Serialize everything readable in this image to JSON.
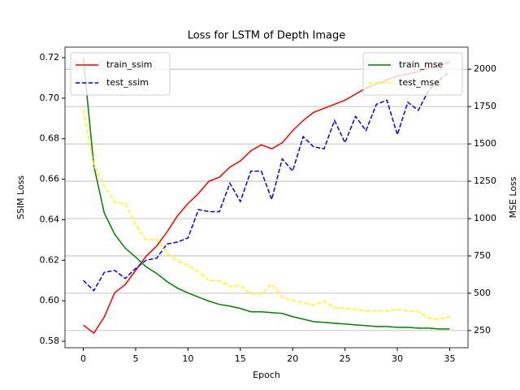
{
  "chart_data": {
    "type": "line",
    "title": "Loss for LSTM of Depth Image",
    "xlabel": "Epoch",
    "ylabel": "SSIM Loss",
    "y2label": "MSE Loss",
    "x": [
      0,
      1,
      2,
      3,
      4,
      5,
      6,
      7,
      8,
      9,
      10,
      11,
      12,
      13,
      14,
      15,
      16,
      17,
      18,
      19,
      20,
      21,
      22,
      23,
      24,
      25,
      26,
      27,
      28,
      29,
      30,
      31,
      32,
      33,
      34,
      35
    ],
    "xlim": [
      -1.75,
      36.75
    ],
    "xticks": [
      0,
      5,
      10,
      15,
      20,
      25,
      30,
      35
    ],
    "ylim": [
      0.5768,
      0.7252
    ],
    "yticks": [
      0.58,
      {
        "value": 0.6,
        "label": "0.60"
      },
      0.62,
      0.64,
      0.66,
      0.68,
      {
        "value": 0.7,
        "label": "0.70"
      },
      0.72
    ],
    "y2lim": [
      135,
      2148
    ],
    "y2ticks": [
      250,
      500,
      750,
      1000,
      1250,
      1500,
      1750,
      2000
    ],
    "grid": "y2",
    "legend_loc": "upper left",
    "legend2_loc": "upper right",
    "series": [
      {
        "name": "train_ssim",
        "color": "#ff0000",
        "linestyle": "solid",
        "axis": "y",
        "values": [
          0.588,
          0.584,
          0.592,
          0.604,
          0.608,
          0.615,
          0.622,
          0.627,
          0.634,
          0.642,
          0.648,
          0.653,
          0.659,
          0.661,
          0.666,
          0.669,
          0.674,
          0.677,
          0.675,
          0.678,
          0.684,
          0.689,
          0.693,
          0.695,
          0.697,
          0.699,
          0.702,
          0.705,
          0.707,
          0.709,
          0.711,
          0.712,
          0.713,
          0.715,
          0.716,
          0.718
        ]
      },
      {
        "name": "test_ssim",
        "color": "#0000ff",
        "linestyle": "dashed",
        "axis": "y",
        "values": [
          0.61,
          0.605,
          0.614,
          0.615,
          0.611,
          0.616,
          0.62,
          0.621,
          0.628,
          0.629,
          0.631,
          0.645,
          0.644,
          0.644,
          0.658,
          0.649,
          0.664,
          0.664,
          0.65,
          0.67,
          0.664,
          0.681,
          0.676,
          0.675,
          0.689,
          0.678,
          0.691,
          0.684,
          0.697,
          0.699,
          0.682,
          0.698,
          0.694,
          0.704,
          0.709,
          0.713
        ]
      },
      {
        "name": "train_mse",
        "color": "#008000",
        "linestyle": "solid",
        "axis": "y2",
        "values": [
          2077,
          1355,
          1037,
          895,
          802,
          742,
          677,
          633,
          578,
          534,
          502,
          474,
          447,
          425,
          414,
          398,
          376,
          376,
          370,
          365,
          343,
          327,
          310,
          305,
          299,
          294,
          288,
          283,
          277,
          277,
          272,
          272,
          266,
          266,
          261,
          261
        ]
      },
      {
        "name": "test_mse",
        "color": "#ffff00",
        "linestyle": "dashed",
        "axis": "y2",
        "values": [
          1727,
          1355,
          1218,
          1109,
          1098,
          955,
          857,
          862,
          770,
          715,
          687,
          644,
          584,
          584,
          545,
          551,
          496,
          496,
          562,
          474,
          452,
          436,
          420,
          447,
          403,
          398,
          392,
          381,
          381,
          381,
          392,
          381,
          376,
          332,
          327,
          343
        ]
      }
    ]
  }
}
